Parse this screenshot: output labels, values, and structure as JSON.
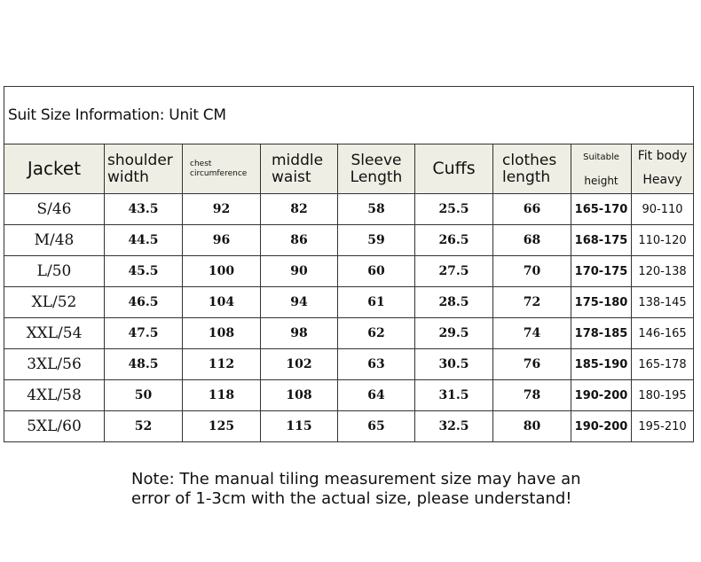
{
  "title": "Suit Size Information: Unit CM",
  "headers": {
    "jacket": "Jacket",
    "shoulder": [
      "shoulder",
      "width"
    ],
    "chest": [
      "chest",
      "circumference"
    ],
    "waist": [
      "middle",
      "waist"
    ],
    "sleeve": [
      "Sleeve",
      "Length"
    ],
    "cuffs": "Cuffs",
    "length": [
      "clothes",
      "length"
    ],
    "height": [
      "Suitable",
      "height"
    ],
    "weight": [
      "Fit body",
      "Heavy"
    ]
  },
  "rows": [
    [
      "S/46",
      "43.5",
      "92",
      "82",
      "58",
      "25.5",
      "66",
      "165-170",
      "90-110"
    ],
    [
      "M/48",
      "44.5",
      "96",
      "86",
      "59",
      "26.5",
      "68",
      "168-175",
      "110-120"
    ],
    [
      "L/50",
      "45.5",
      "100",
      "90",
      "60",
      "27.5",
      "70",
      "170-175",
      "120-138"
    ],
    [
      "XL/52",
      "46.5",
      "104",
      "94",
      "61",
      "28.5",
      "72",
      "175-180",
      "138-145"
    ],
    [
      "XXL/54",
      "47.5",
      "108",
      "98",
      "62",
      "29.5",
      "74",
      "178-185",
      "146-165"
    ],
    [
      "3XL/56",
      "48.5",
      "112",
      "102",
      "63",
      "30.5",
      "76",
      "185-190",
      "165-178"
    ],
    [
      "4XL/58",
      "50",
      "118",
      "108",
      "64",
      "31.5",
      "78",
      "190-200",
      "180-195"
    ],
    [
      "5XL/60",
      "52",
      "125",
      "115",
      "65",
      "32.5",
      "80",
      "190-200",
      "195-210"
    ]
  ],
  "note": [
    "Note: The manual tiling measurement size may have an",
    "error of 1-3cm with the actual size, please understand!"
  ],
  "colors": {
    "header_bg": "#eeeee4",
    "border": "#333333"
  }
}
